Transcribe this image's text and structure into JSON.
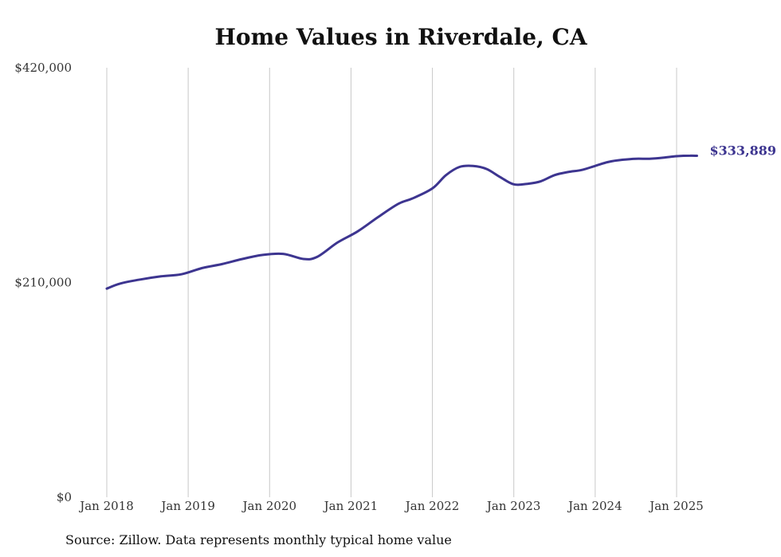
{
  "chart_data": {
    "type": "line",
    "title": "Home Values in Riverdale, CA",
    "xlabel": "",
    "ylabel": "",
    "ylim": [
      0,
      420000
    ],
    "y_ticks": [
      "$0",
      "$210,000",
      "$420,000"
    ],
    "x_ticks": [
      "Jan 2018",
      "Jan 2019",
      "Jan 2020",
      "Jan 2021",
      "Jan 2022",
      "Jan 2023",
      "Jan 2024",
      "Jan 2025"
    ],
    "grid": "vertical",
    "line_color": "#3d3590",
    "end_label": "$333,889",
    "series": [
      {
        "x": [
          "2018-01",
          "2018-03",
          "2018-06",
          "2018-09",
          "2018-12",
          "2019-03",
          "2019-06",
          "2019-09",
          "2019-12",
          "2020-03",
          "2020-06",
          "2020-08",
          "2020-11",
          "2021-02",
          "2021-05",
          "2021-08",
          "2021-10",
          "2022-01",
          "2022-03",
          "2022-05",
          "2022-07",
          "2022-09",
          "2022-11",
          "2023-01",
          "2023-03",
          "2023-05",
          "2023-07",
          "2023-09",
          "2023-11",
          "2024-01",
          "2024-03",
          "2024-05",
          "2024-07",
          "2024-09",
          "2024-11",
          "2025-01",
          "2025-03",
          "2025-04"
        ],
        "values": [
          204000,
          209000,
          213000,
          216000,
          218000,
          224000,
          228000,
          233000,
          237000,
          238000,
          233000,
          235000,
          249000,
          260000,
          274000,
          287000,
          292000,
          302000,
          315000,
          323000,
          324000,
          321000,
          313000,
          306000,
          306500,
          309000,
          315000,
          318000,
          320000,
          324000,
          328000,
          330000,
          331000,
          331000,
          332000,
          333500,
          334000,
          333889
        ]
      }
    ]
  },
  "source_note": "Source: Zillow. Data represents monthly typical home value"
}
